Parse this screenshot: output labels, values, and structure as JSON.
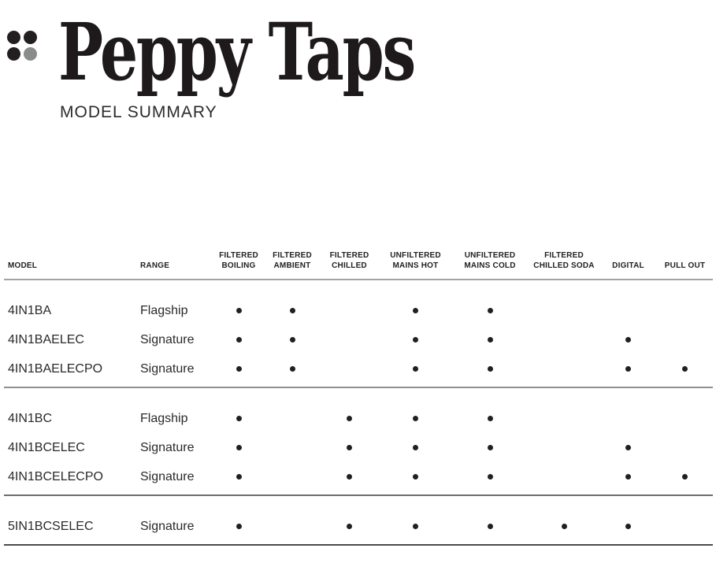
{
  "brand": {
    "title": "Peppy Taps",
    "subtitle": "MODEL SUMMARY",
    "logo": {
      "dot_colors": [
        "#231f20",
        "#231f20",
        "#231f20",
        "#8b8b8b"
      ]
    }
  },
  "colors": {
    "text": "#231f20",
    "accent_gray": "#8b8b8b",
    "rule_light": "#a3a3a3",
    "rule_dark": "#4c4c4c"
  },
  "table": {
    "columns": [
      {
        "key": "model",
        "label": "MODEL",
        "type": "text"
      },
      {
        "key": "range",
        "label": "RANGE",
        "type": "text"
      },
      {
        "key": "filtered_boiling",
        "label": "FILTERED\nBOILING",
        "type": "feature"
      },
      {
        "key": "filtered_ambient",
        "label": "FILTERED\nAMBIENT",
        "type": "feature"
      },
      {
        "key": "filtered_chilled",
        "label": "FILTERED\nCHILLED",
        "type": "feature"
      },
      {
        "key": "unfiltered_mains_hot",
        "label": "UNFILTERED\nMAINS HOT",
        "type": "feature"
      },
      {
        "key": "unfiltered_mains_cold",
        "label": "UNFILTERED\nMAINS COLD",
        "type": "feature"
      },
      {
        "key": "filtered_chilled_soda",
        "label": "FILTERED\nCHILLED SODA",
        "type": "feature"
      },
      {
        "key": "digital",
        "label": "DIGITAL",
        "type": "feature"
      },
      {
        "key": "pull_out",
        "label": "PULL OUT",
        "type": "feature"
      }
    ],
    "groups": [
      {
        "rows": [
          {
            "model": "4IN1BA",
            "range": "Flagship",
            "features": [
              1,
              1,
              0,
              1,
              1,
              0,
              0,
              0
            ]
          },
          {
            "model": "4IN1BAELEC",
            "range": "Signature",
            "features": [
              1,
              1,
              0,
              1,
              1,
              0,
              1,
              0
            ]
          },
          {
            "model": "4IN1BAELECPO",
            "range": "Signature",
            "features": [
              1,
              1,
              0,
              1,
              1,
              0,
              1,
              1
            ]
          }
        ]
      },
      {
        "rows": [
          {
            "model": "4IN1BC",
            "range": "Flagship",
            "features": [
              1,
              0,
              1,
              1,
              1,
              0,
              0,
              0
            ]
          },
          {
            "model": "4IN1BCELEC",
            "range": "Signature",
            "features": [
              1,
              0,
              1,
              1,
              1,
              0,
              1,
              0
            ]
          },
          {
            "model": "4IN1BCELECPO",
            "range": "Signature",
            "features": [
              1,
              0,
              1,
              1,
              1,
              0,
              1,
              1
            ]
          }
        ]
      },
      {
        "rows": [
          {
            "model": "5IN1BCSELEC",
            "range": "Signature",
            "features": [
              1,
              0,
              1,
              1,
              1,
              1,
              1,
              0
            ]
          }
        ]
      }
    ]
  }
}
